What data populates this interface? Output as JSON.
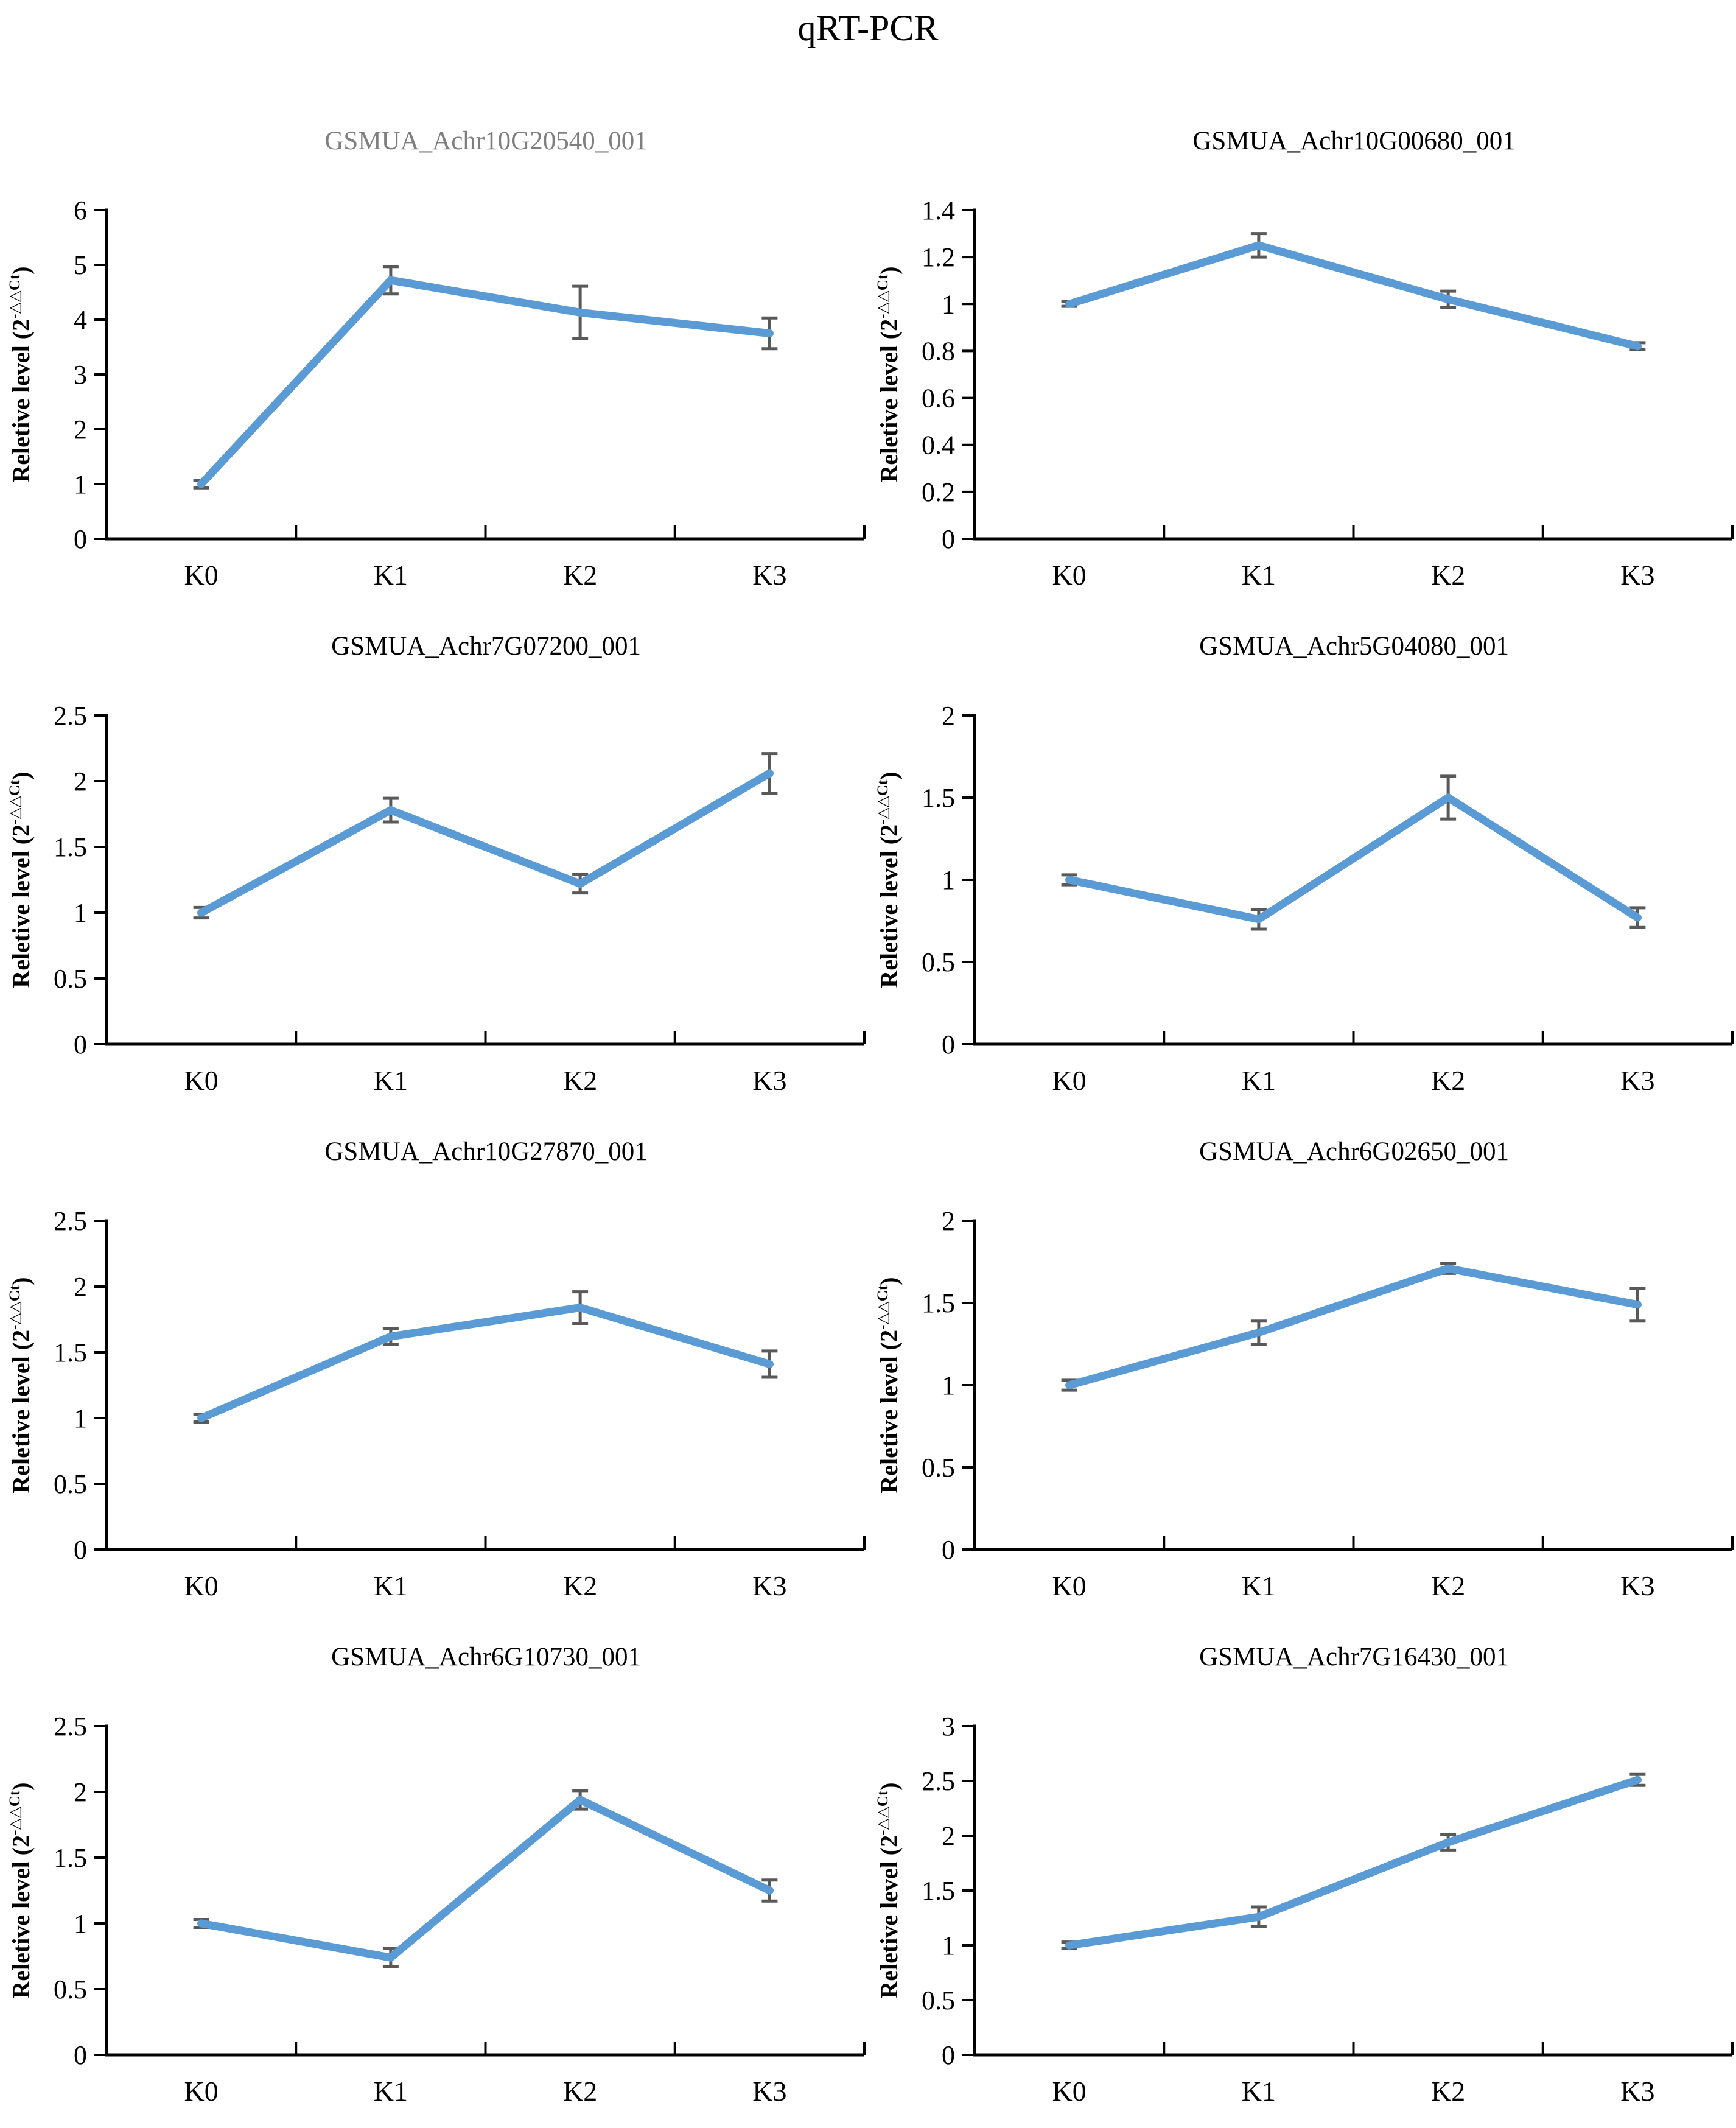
{
  "figure": {
    "title": "qRT-PCR",
    "ylabel": {
      "prefix": "Reletive level (2",
      "superscript": "-△△Ct",
      "suffix": ")"
    },
    "categories": [
      "K0",
      "K1",
      "K2",
      "K3"
    ],
    "colors": {
      "line": "#5B9BD5",
      "error_bar": "#595959",
      "axis": "#000000",
      "muted_title": "#7f7f7f",
      "normal_title": "#000000"
    }
  },
  "chart_data": [
    {
      "type": "line",
      "title": "GSMUA_Achr10G20540_001",
      "title_color": "#7f7f7f",
      "categories": [
        "K0",
        "K1",
        "K2",
        "K3"
      ],
      "values": [
        1.0,
        4.72,
        4.13,
        3.75
      ],
      "errors": [
        0.07,
        0.25,
        0.48,
        0.28
      ],
      "ylim": [
        0,
        6
      ],
      "yticks": [
        0,
        1,
        2,
        3,
        4,
        5,
        6
      ],
      "ylabel": "Reletive level (2-△△Ct)",
      "grid": false,
      "legend": "none"
    },
    {
      "type": "line",
      "title": "GSMUA_Achr10G00680_001",
      "title_color": "#000000",
      "categories": [
        "K0",
        "K1",
        "K2",
        "K3"
      ],
      "values": [
        1.0,
        1.25,
        1.02,
        0.82
      ],
      "errors": [
        0.01,
        0.05,
        0.035,
        0.015
      ],
      "ylim": [
        0,
        1.4
      ],
      "yticks": [
        0,
        0.2,
        0.4,
        0.6,
        0.8,
        1,
        1.2,
        1.4
      ],
      "ylabel": "Reletive level (2-△△Ct)",
      "grid": false,
      "legend": "none"
    },
    {
      "type": "line",
      "title": "GSMUA_Achr7G07200_001",
      "title_color": "#000000",
      "categories": [
        "K0",
        "K1",
        "K2",
        "K3"
      ],
      "values": [
        1.0,
        1.78,
        1.22,
        2.06
      ],
      "errors": [
        0.04,
        0.09,
        0.07,
        0.15
      ],
      "ylim": [
        0,
        2.5
      ],
      "yticks": [
        0,
        0.5,
        1,
        1.5,
        2,
        2.5
      ],
      "ylabel": "Reletive level (2-△△Ct)",
      "grid": false,
      "legend": "none"
    },
    {
      "type": "line",
      "title": "GSMUA_Achr5G04080_001",
      "title_color": "#000000",
      "categories": [
        "K0",
        "K1",
        "K2",
        "K3"
      ],
      "values": [
        1.0,
        0.76,
        1.5,
        0.77
      ],
      "errors": [
        0.03,
        0.06,
        0.13,
        0.06
      ],
      "ylim": [
        0,
        2
      ],
      "yticks": [
        0,
        0.5,
        1,
        1.5,
        2
      ],
      "ylabel": "Reletive level (2-△△Ct)",
      "grid": false,
      "legend": "none"
    },
    {
      "type": "line",
      "title": "GSMUA_Achr10G27870_001",
      "title_color": "#000000",
      "categories": [
        "K0",
        "K1",
        "K2",
        "K3"
      ],
      "values": [
        1.0,
        1.62,
        1.84,
        1.41
      ],
      "errors": [
        0.03,
        0.06,
        0.12,
        0.1
      ],
      "ylim": [
        0,
        2.5
      ],
      "yticks": [
        0,
        0.5,
        1,
        1.5,
        2,
        2.5
      ],
      "ylabel": "Reletive level (2-△△Ct)",
      "grid": false,
      "legend": "none"
    },
    {
      "type": "line",
      "title": "GSMUA_Achr6G02650_001",
      "title_color": "#000000",
      "categories": [
        "K0",
        "K1",
        "K2",
        "K3"
      ],
      "values": [
        1.0,
        1.32,
        1.71,
        1.49
      ],
      "errors": [
        0.03,
        0.07,
        0.03,
        0.1
      ],
      "ylim": [
        0,
        2
      ],
      "yticks": [
        0,
        0.5,
        1,
        1.5,
        2
      ],
      "ylabel": "Reletive level (2-△△Ct)",
      "grid": false,
      "legend": "none"
    },
    {
      "type": "line",
      "title": "GSMUA_Achr6G10730_001",
      "title_color": "#000000",
      "categories": [
        "K0",
        "K1",
        "K2",
        "K3"
      ],
      "values": [
        1.0,
        0.74,
        1.94,
        1.25
      ],
      "errors": [
        0.03,
        0.07,
        0.07,
        0.08
      ],
      "ylim": [
        0,
        2.5
      ],
      "yticks": [
        0,
        0.5,
        1,
        1.5,
        2,
        2.5
      ],
      "ylabel": "Reletive level (2-△△Ct)",
      "grid": false,
      "legend": "none"
    },
    {
      "type": "line",
      "title": "GSMUA_Achr7G16430_001",
      "title_color": "#000000",
      "categories": [
        "K0",
        "K1",
        "K2",
        "K3"
      ],
      "values": [
        1.0,
        1.26,
        1.94,
        2.51
      ],
      "errors": [
        0.03,
        0.09,
        0.07,
        0.05
      ],
      "ylim": [
        0,
        3
      ],
      "yticks": [
        0,
        0.5,
        1,
        1.5,
        2,
        2.5,
        3
      ],
      "ylabel": "Reletive level (2-△△Ct)",
      "grid": false,
      "legend": "none"
    }
  ]
}
